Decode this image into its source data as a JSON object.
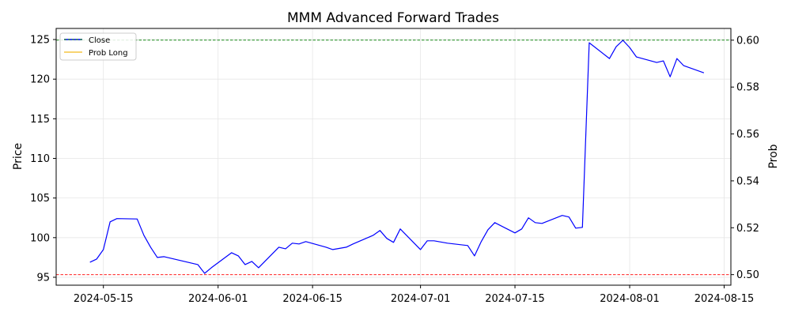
{
  "chart_data": {
    "type": "line",
    "title": "MMM Advanced Forward Trades",
    "xlabel": "",
    "ylabel": "Price",
    "y2label": "Prob",
    "xlim": [
      "2024-05-08",
      "2024-08-16"
    ],
    "ylim": [
      94.0,
      126.4
    ],
    "y2lim": [
      0.4955,
      0.605
    ],
    "grid": true,
    "legend_position": "top-left",
    "x_ticks": [
      "2024-05-15",
      "2024-06-01",
      "2024-06-15",
      "2024-07-01",
      "2024-07-15",
      "2024-08-01",
      "2024-08-15"
    ],
    "y_ticks": [
      "95",
      "100",
      "105",
      "110",
      "115",
      "120",
      "125"
    ],
    "y2_ticks": [
      "0.50",
      "0.52",
      "0.54",
      "0.56",
      "0.58",
      "0.60"
    ],
    "hlines": [
      {
        "axis": "y2",
        "value": 0.6,
        "color": "#008000"
      },
      {
        "axis": "y2",
        "value": 0.5,
        "color": "#ff0000"
      }
    ],
    "series": [
      {
        "name": "Close",
        "axis": "y",
        "color": "#0000ff",
        "x": [
          "2024-05-13",
          "2024-05-14",
          "2024-05-15",
          "2024-05-16",
          "2024-05-17",
          "2024-05-20",
          "2024-05-21",
          "2024-05-22",
          "2024-05-23",
          "2024-05-24",
          "2024-05-28",
          "2024-05-29",
          "2024-05-30",
          "2024-05-31",
          "2024-06-03",
          "2024-06-04",
          "2024-06-05",
          "2024-06-06",
          "2024-06-07",
          "2024-06-10",
          "2024-06-11",
          "2024-06-12",
          "2024-06-13",
          "2024-06-14",
          "2024-06-17",
          "2024-06-18",
          "2024-06-20",
          "2024-06-21",
          "2024-06-24",
          "2024-06-25",
          "2024-06-26",
          "2024-06-27",
          "2024-06-28",
          "2024-07-01",
          "2024-07-02",
          "2024-07-03",
          "2024-07-05",
          "2024-07-08",
          "2024-07-09",
          "2024-07-10",
          "2024-07-11",
          "2024-07-12",
          "2024-07-15",
          "2024-07-16",
          "2024-07-17",
          "2024-07-18",
          "2024-07-19",
          "2024-07-22",
          "2024-07-23",
          "2024-07-24",
          "2024-07-25",
          "2024-07-26",
          "2024-07-29",
          "2024-07-30",
          "2024-07-31",
          "2024-08-01",
          "2024-08-02",
          "2024-08-05",
          "2024-08-06",
          "2024-08-07",
          "2024-08-08",
          "2024-08-09",
          "2024-08-12"
        ],
        "y": [
          96.9,
          97.3,
          98.5,
          102.0,
          102.4,
          102.35,
          100.3,
          98.8,
          97.5,
          97.6,
          96.8,
          96.6,
          95.5,
          96.2,
          98.1,
          97.7,
          96.6,
          97.0,
          96.2,
          98.8,
          98.6,
          99.3,
          99.2,
          99.5,
          98.8,
          98.5,
          98.8,
          99.2,
          100.3,
          100.9,
          99.9,
          99.4,
          101.1,
          98.5,
          99.6,
          99.6,
          99.3,
          99.0,
          97.7,
          99.5,
          101.0,
          101.9,
          100.6,
          101.1,
          102.5,
          101.9,
          101.8,
          102.8,
          102.6,
          101.2,
          101.3,
          124.6,
          122.6,
          124.1,
          124.9,
          124.0,
          122.8,
          122.1,
          122.3,
          120.3,
          122.6,
          121.7,
          120.8
        ]
      },
      {
        "name": "Prob Long",
        "axis": "y2",
        "color": "#f5c542",
        "x": [],
        "y": []
      }
    ]
  }
}
